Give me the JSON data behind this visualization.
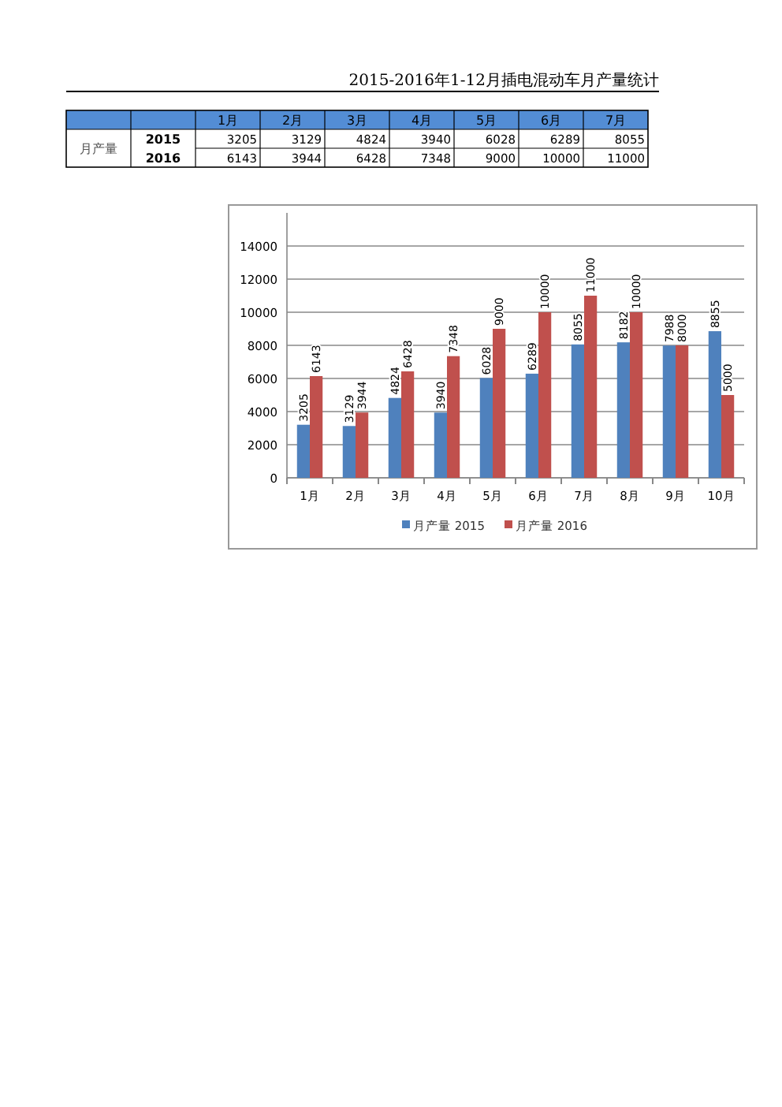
{
  "chart_data": {
    "type": "bar",
    "title": "2015-2016年1-12月插电混动车月产量统计",
    "categories": [
      "1月",
      "2月",
      "3月",
      "4月",
      "5月",
      "6月",
      "7月",
      "8月",
      "9月",
      "10月"
    ],
    "series": [
      {
        "name": "月产量 2015",
        "color": "#4f81bd",
        "values": [
          3205,
          3129,
          4824,
          3940,
          6028,
          6289,
          8055,
          8182,
          7988,
          8855
        ],
        "value_labels": [
          "3205",
          "3129",
          "4824",
          "3940",
          "6028",
          "6289",
          "8055",
          "8182",
          "7988",
          "8855"
        ]
      },
      {
        "name": "月产量 2016",
        "color": "#c0504d",
        "values": [
          6143,
          3944,
          6428,
          7348,
          9000,
          10000,
          11000,
          10000,
          8000,
          5000
        ],
        "value_labels": [
          "6143",
          "3944",
          "6428",
          "7348",
          "9000",
          "10000",
          "11000",
          "10000",
          "8000",
          "5000"
        ]
      }
    ],
    "annotations": [
      "月产量",
      "2015",
      "2016"
    ],
    "ylim": [
      0,
      16000
    ],
    "yticks": [
      0,
      2000,
      4000,
      6000,
      8000,
      10000,
      12000,
      14000
    ],
    "grid": "y",
    "legend": "bottom"
  }
}
